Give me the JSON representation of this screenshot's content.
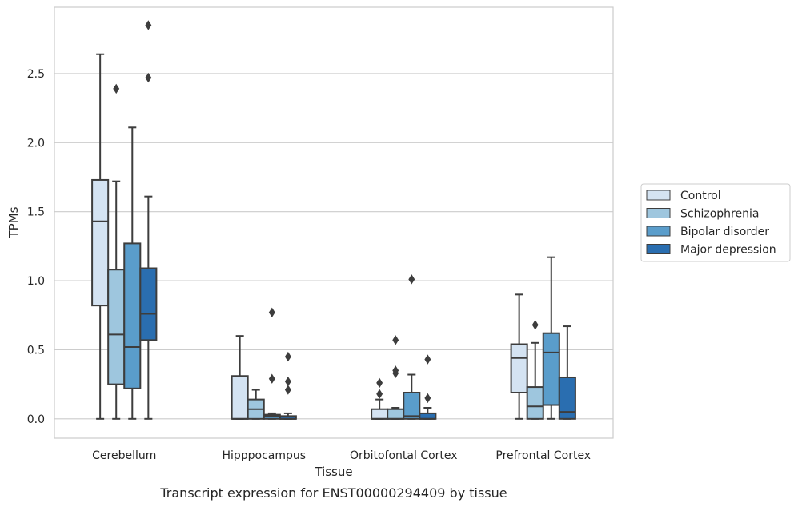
{
  "chart_data": {
    "type": "box",
    "categories": [
      "Cerebellum",
      "Hipppocampus",
      "Orbitofontal Cortex",
      "Prefrontal Cortex"
    ],
    "xlabel": "Tissue",
    "ylabel": "TPMs",
    "caption": "Transcript expression for ENST00000294409 by tissue",
    "ylim": [
      -0.14,
      2.98
    ],
    "yticks": [
      0.0,
      0.5,
      1.0,
      1.5,
      2.0,
      2.5
    ],
    "ytick_labels": [
      "0.0",
      "0.5",
      "1.0",
      "1.5",
      "2.0",
      "2.5"
    ],
    "grid": "horizontal",
    "legend_position": "right",
    "series": [
      {
        "name": "Control",
        "color": "#d4e3f2",
        "boxes": [
          {
            "min": 0.0,
            "q1": 0.82,
            "median": 1.43,
            "q3": 1.73,
            "max": 2.64,
            "outliers": []
          },
          {
            "min": 0.0,
            "q1": 0.0,
            "median": 0.0,
            "q3": 0.31,
            "max": 0.6,
            "outliers": []
          },
          {
            "min": 0.0,
            "q1": 0.0,
            "median": 0.0,
            "q3": 0.07,
            "max": 0.14,
            "outliers": [
              0.18,
              0.26
            ]
          },
          {
            "min": 0.0,
            "q1": 0.19,
            "median": 0.44,
            "q3": 0.54,
            "max": 0.9,
            "outliers": []
          }
        ]
      },
      {
        "name": "Schizophrenia",
        "color": "#9ec6de",
        "boxes": [
          {
            "min": 0.0,
            "q1": 0.25,
            "median": 0.61,
            "q3": 1.08,
            "max": 1.72,
            "outliers": [
              2.39
            ]
          },
          {
            "min": 0.0,
            "q1": 0.0,
            "median": 0.07,
            "q3": 0.14,
            "max": 0.21,
            "outliers": []
          },
          {
            "min": 0.0,
            "q1": 0.0,
            "median": 0.0,
            "q3": 0.07,
            "max": 0.08,
            "outliers": [
              0.33,
              0.35,
              0.57
            ]
          },
          {
            "min": 0.0,
            "q1": 0.0,
            "median": 0.09,
            "q3": 0.23,
            "max": 0.55,
            "outliers": [
              0.68
            ]
          }
        ]
      },
      {
        "name": "Bipolar disorder",
        "color": "#5a9dcb",
        "boxes": [
          {
            "min": 0.0,
            "q1": 0.22,
            "median": 0.52,
            "q3": 1.27,
            "max": 2.11,
            "outliers": []
          },
          {
            "min": 0.0,
            "q1": 0.0,
            "median": 0.02,
            "q3": 0.03,
            "max": 0.04,
            "outliers": [
              0.29,
              0.77
            ]
          },
          {
            "min": 0.0,
            "q1": 0.0,
            "median": 0.02,
            "q3": 0.19,
            "max": 0.32,
            "outliers": [
              1.01
            ]
          },
          {
            "min": 0.0,
            "q1": 0.1,
            "median": 0.48,
            "q3": 0.62,
            "max": 1.17,
            "outliers": []
          }
        ]
      },
      {
        "name": "Major depression",
        "color": "#2a6eb0",
        "boxes": [
          {
            "min": 0.0,
            "q1": 0.57,
            "median": 0.76,
            "q3": 1.09,
            "max": 1.61,
            "outliers": [
              2.47,
              2.85
            ]
          },
          {
            "min": 0.0,
            "q1": 0.0,
            "median": 0.0,
            "q3": 0.02,
            "max": 0.04,
            "outliers": [
              0.21,
              0.27,
              0.45
            ]
          },
          {
            "min": 0.0,
            "q1": 0.0,
            "median": 0.0,
            "q3": 0.04,
            "max": 0.08,
            "outliers": [
              0.15,
              0.43
            ]
          },
          {
            "min": 0.0,
            "q1": 0.0,
            "median": 0.05,
            "q3": 0.3,
            "max": 0.67,
            "outliers": []
          }
        ]
      }
    ]
  },
  "style": {
    "edge_color": "#3d3d3d",
    "grid_color": "#cccccc",
    "frame_color": "#cccccc"
  }
}
